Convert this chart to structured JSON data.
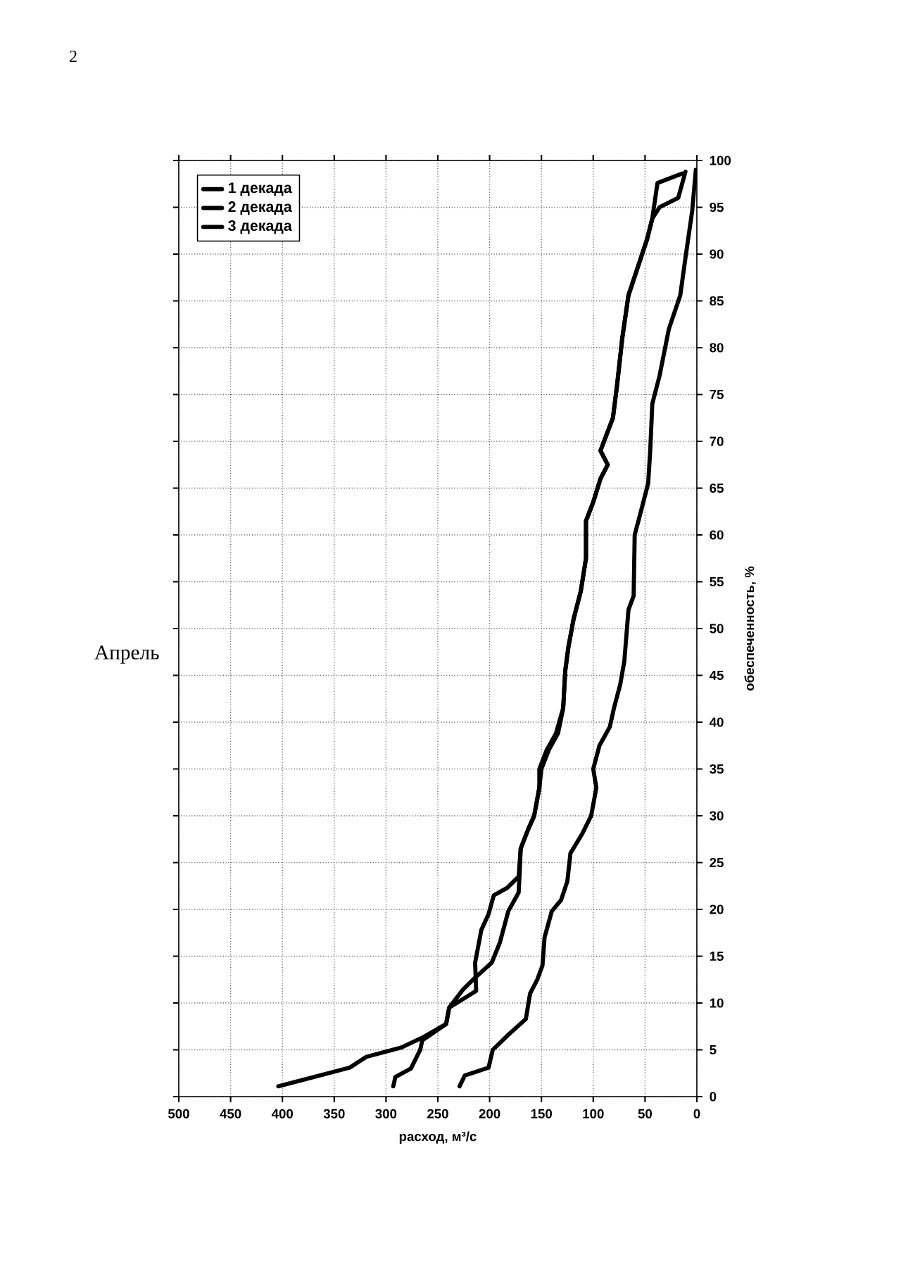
{
  "chart_data": {
    "type": "line",
    "title": "Апрель",
    "xlabel": "расход, м³/с",
    "ylabel": "обеспеченность, %",
    "annotations": [
      "2"
    ],
    "xlim": [
      500,
      0
    ],
    "ylim": [
      0,
      100
    ],
    "xticks": [
      0,
      50,
      100,
      150,
      200,
      250,
      300,
      350,
      400,
      450,
      500
    ],
    "yticks": [
      0,
      5,
      10,
      15,
      20,
      25,
      30,
      35,
      40,
      45,
      50,
      55,
      60,
      65,
      70,
      75,
      80,
      85,
      90,
      95,
      100
    ],
    "grid": true,
    "legend": "top left",
    "marker": "none",
    "line_style": "solid",
    "series": [
      {
        "name": "1 декада",
        "color": "#000000",
        "values": [
          1.1,
          3.1,
          4.25,
          5.25,
          6.3,
          7.75,
          9.5,
          11.4,
          12.6,
          14.3,
          16.5,
          19.8,
          21.8,
          24,
          26.5,
          28.5,
          30,
          33,
          35,
          37,
          38.8,
          41.5,
          45.5,
          48,
          51,
          54,
          57.5,
          61.5,
          63.5,
          66,
          67.5,
          69,
          72.5,
          76,
          81,
          85.6,
          88.6,
          91.6,
          93.8,
          95,
          96,
          98.8
        ],
        "x": [
          404,
          335,
          319,
          285,
          265,
          242,
          239,
          226,
          215,
          198,
          190,
          182,
          172,
          171,
          170,
          163,
          157,
          152,
          150,
          143,
          134,
          129,
          127,
          124,
          119,
          112,
          107,
          107,
          100,
          93,
          86,
          93,
          81,
          77,
          72,
          66,
          57,
          48,
          43,
          36,
          18,
          11
        ]
      },
      {
        "name": "2 декада",
        "color": "#000000",
        "values": [
          1.1,
          2.1,
          3,
          5,
          6,
          7.75,
          9.5,
          11.3,
          14.3,
          17.8,
          19.5,
          21.5,
          22.3,
          23.5,
          25,
          26.5,
          28.5,
          30,
          33,
          35,
          37,
          38.8,
          41.5,
          45.5,
          48,
          51,
          54,
          57.5,
          61.5,
          63.5,
          66,
          67.5,
          69,
          72.5,
          76,
          81,
          85.6,
          88.6,
          91.6,
          93.8,
          97.6,
          98.6
        ],
        "x": [
          293,
          291,
          276,
          267,
          265,
          242,
          239,
          213,
          214,
          208,
          201,
          196,
          183,
          172,
          171,
          170,
          163,
          157,
          152,
          152,
          145,
          136,
          129,
          127,
          124,
          119,
          112,
          107,
          107,
          100,
          93,
          86,
          93,
          81,
          77,
          72,
          66,
          57,
          48,
          43,
          38,
          14
        ]
      },
      {
        "name": "3 декада",
        "color": "#000000",
        "values": [
          1.1,
          2.25,
          3.1,
          5,
          6.5,
          8.3,
          11,
          12.5,
          14,
          17,
          19.8,
          21,
          23,
          26,
          28,
          30,
          33,
          35,
          37.5,
          39.5,
          41.5,
          44,
          46.5,
          52,
          53.5,
          60,
          62.5,
          65.5,
          69,
          74,
          77,
          82,
          85.6,
          89.6,
          94.6,
          99
        ],
        "x": [
          229,
          224,
          201,
          197,
          183,
          165,
          161,
          154,
          149,
          147,
          140,
          131,
          125,
          122,
          111,
          102,
          97,
          100,
          94,
          84,
          80,
          74,
          70,
          66,
          61,
          60,
          54,
          47,
          45,
          43,
          36,
          27,
          16,
          11,
          4.5,
          1
        ]
      }
    ]
  }
}
